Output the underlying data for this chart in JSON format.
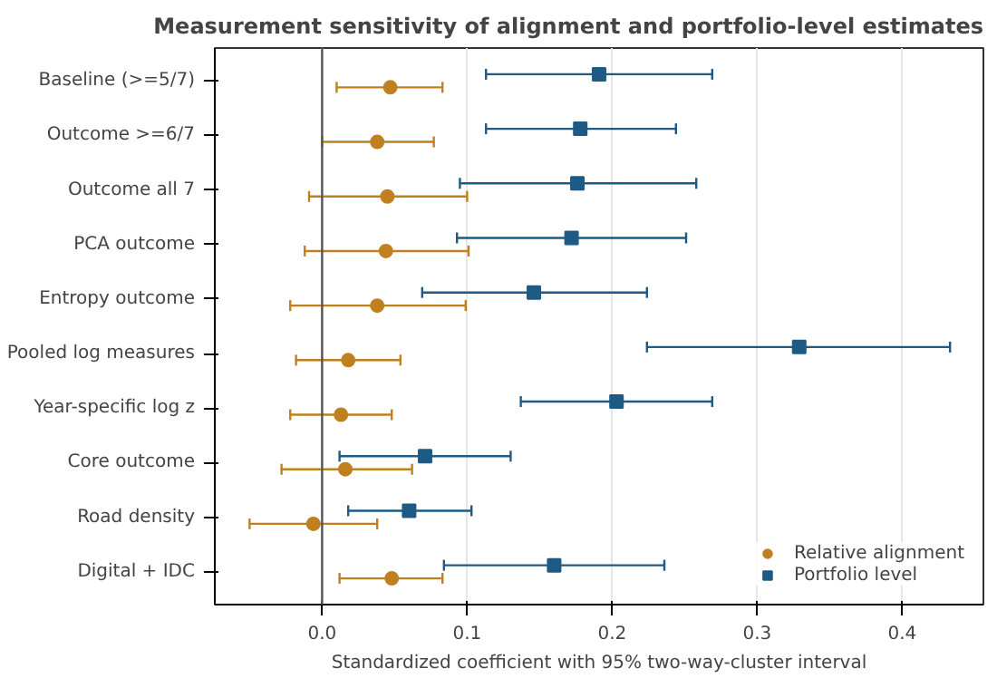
{
  "chart_data": {
    "type": "scatter",
    "orientation": "horizontal",
    "title": "Measurement sensitivity of alignment and portfolio-level estimates",
    "xlabel": "Standardized coefficient with 95% two-way-cluster interval",
    "categories": [
      "Baseline (>=5/7)",
      "Outcome >=6/7",
      "Outcome all 7",
      "PCA outcome",
      "Entropy outcome",
      "Pooled log measures",
      "Year-specific log z",
      "Core outcome",
      "Road density",
      "Digital + IDC"
    ],
    "series": [
      {
        "name": "Relative alignment",
        "color": "#c0801f",
        "marker": "circle",
        "values": [
          0.047,
          0.038,
          0.045,
          0.044,
          0.038,
          0.018,
          0.013,
          0.016,
          -0.006,
          0.048
        ],
        "errors": [
          [
            0.01,
            0.083
          ],
          [
            0.0,
            0.077
          ],
          [
            -0.009,
            0.1
          ],
          [
            -0.012,
            0.101
          ],
          [
            -0.022,
            0.099
          ],
          [
            -0.018,
            0.054
          ],
          [
            -0.022,
            0.048
          ],
          [
            -0.028,
            0.062
          ],
          [
            -0.05,
            0.038
          ],
          [
            0.012,
            0.083
          ]
        ]
      },
      {
        "name": "Portfolio level",
        "color": "#1f5a85",
        "marker": "square",
        "values": [
          0.191,
          0.178,
          0.176,
          0.172,
          0.146,
          0.329,
          0.203,
          0.071,
          0.06,
          0.16
        ],
        "errors": [
          [
            0.113,
            0.269
          ],
          [
            0.113,
            0.244
          ],
          [
            0.095,
            0.258
          ],
          [
            0.093,
            0.251
          ],
          [
            0.069,
            0.224
          ],
          [
            0.224,
            0.433
          ],
          [
            0.137,
            0.269
          ],
          [
            0.012,
            0.13
          ],
          [
            0.018,
            0.103
          ],
          [
            0.084,
            0.236
          ]
        ]
      }
    ],
    "xlim": [
      -0.074,
      0.456
    ],
    "xticks": [
      {
        "value": 0,
        "label": "0.0"
      },
      0.1,
      0.2,
      0.3,
      0.4
    ],
    "ref_lines": [
      {
        "axis": "x",
        "value": 0,
        "color": "#555555"
      }
    ],
    "grid": "x",
    "legend": "bottom right"
  }
}
